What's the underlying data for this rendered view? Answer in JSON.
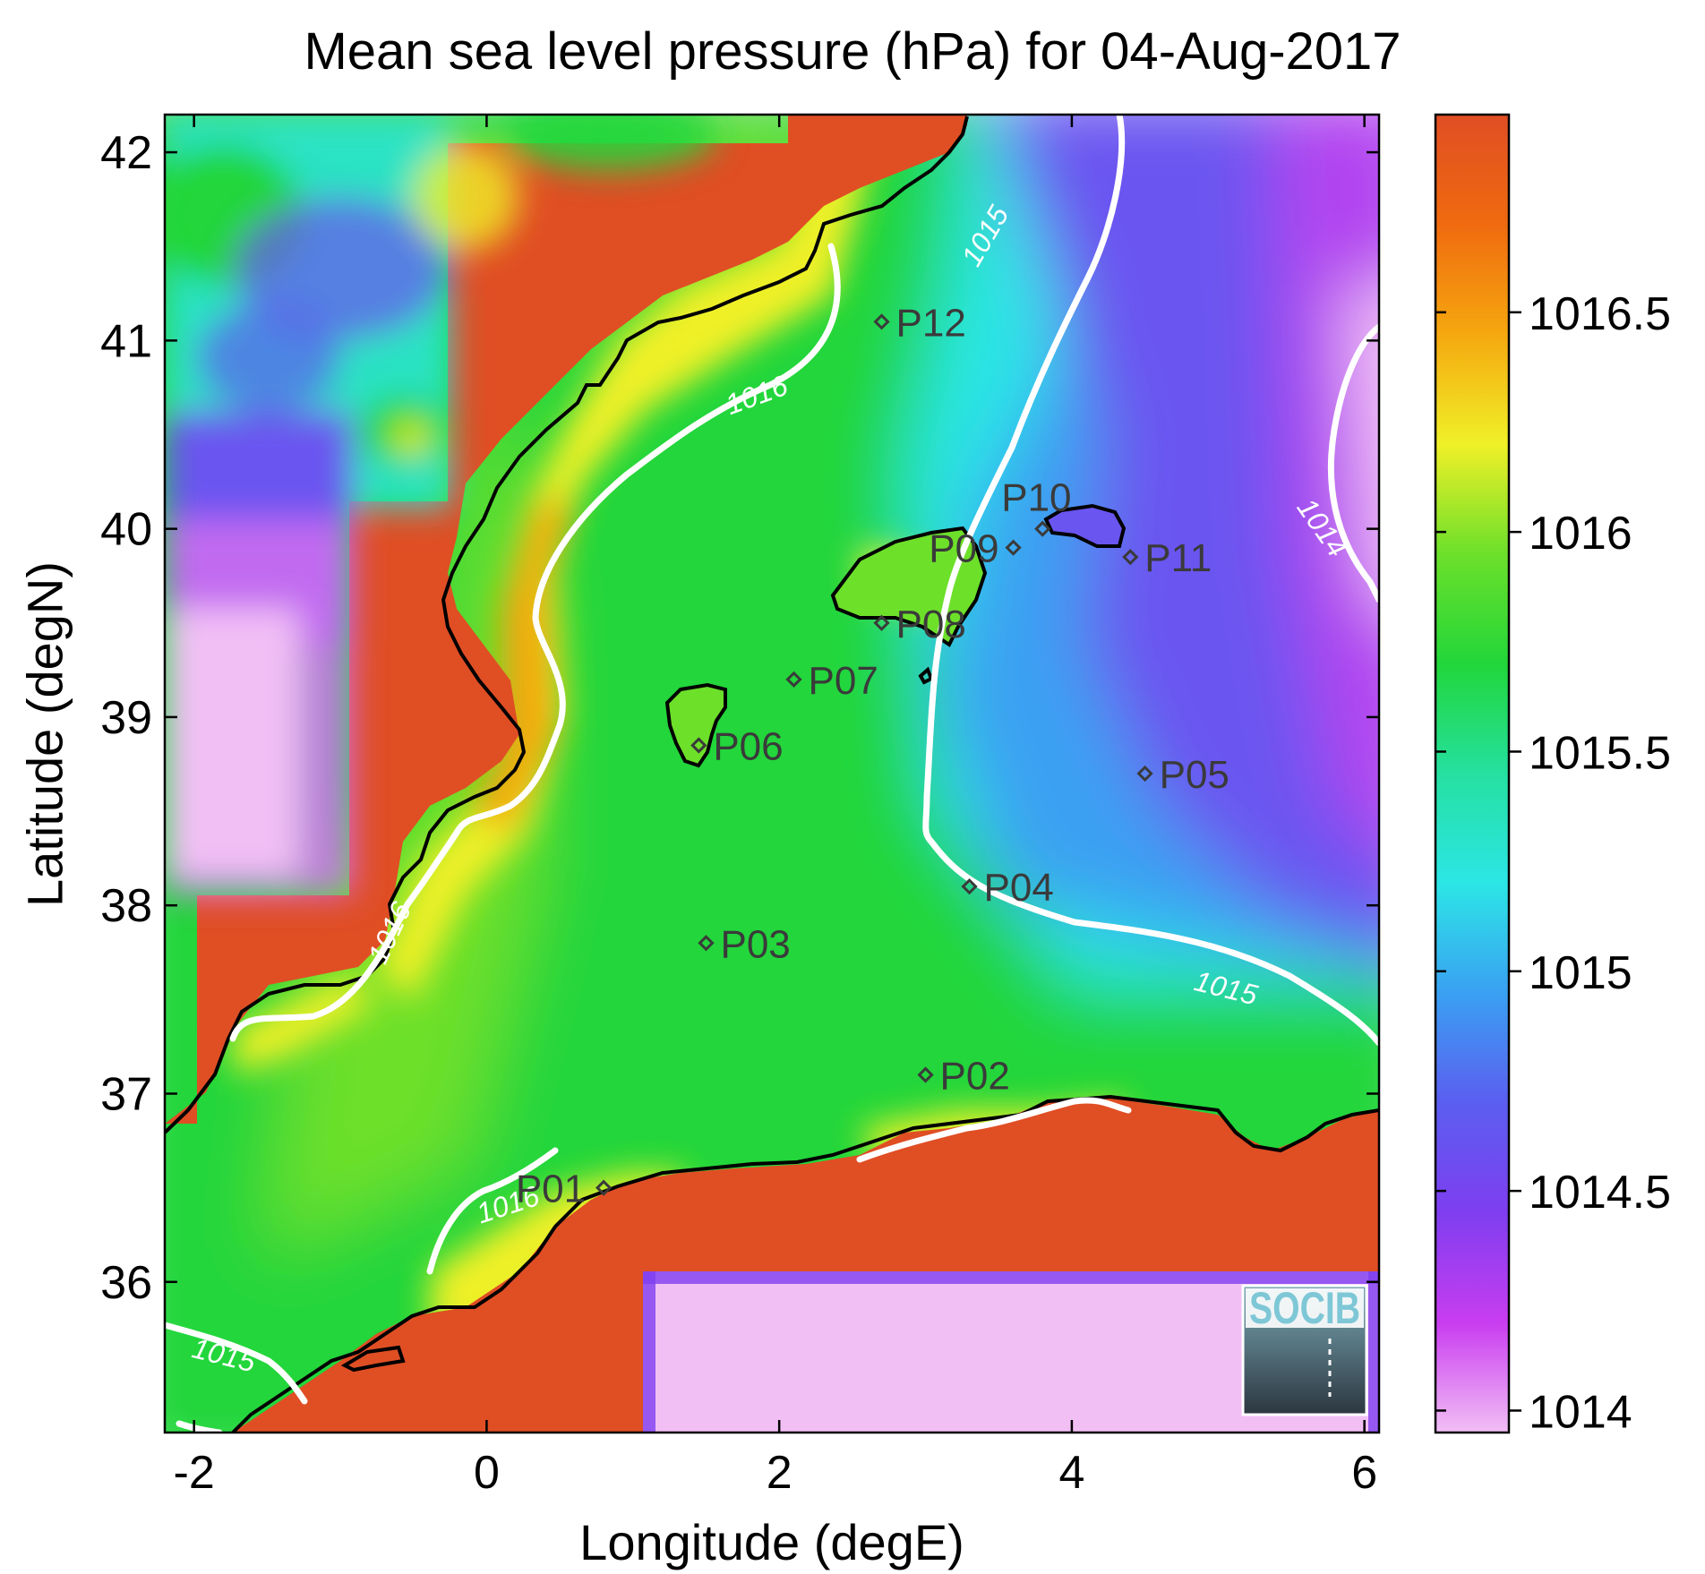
{
  "title": "Mean sea level pressure (hPa) for 04-Aug-2017",
  "x_axis": {
    "label": "Longitude (degE)",
    "range": [
      -2.2,
      6.1
    ],
    "ticks": [
      {
        "value": -2,
        "label": "-2"
      },
      {
        "value": 0,
        "label": "0"
      },
      {
        "value": 2,
        "label": "2"
      },
      {
        "value": 4,
        "label": "4"
      },
      {
        "value": 6,
        "label": "6"
      }
    ]
  },
  "y_axis": {
    "label": "Latitude (degN)",
    "range": [
      35.2,
      42.2
    ],
    "ticks": [
      {
        "value": 36,
        "label": "36"
      },
      {
        "value": 37,
        "label": "37"
      },
      {
        "value": 38,
        "label": "38"
      },
      {
        "value": 39,
        "label": "39"
      },
      {
        "value": 40,
        "label": "40"
      },
      {
        "value": 41,
        "label": "41"
      },
      {
        "value": 42,
        "label": "42"
      }
    ]
  },
  "colorbar": {
    "range": [
      1013.95,
      1016.95
    ],
    "ticks": [
      {
        "value": 1014,
        "label": "1014"
      },
      {
        "value": 1014.5,
        "label": "1014.5"
      },
      {
        "value": 1015,
        "label": "1015"
      },
      {
        "value": 1015.5,
        "label": "1015.5"
      },
      {
        "value": 1016,
        "label": "1016"
      },
      {
        "value": 1016.5,
        "label": "1016.5"
      }
    ],
    "colormap": [
      "#f2bff5",
      "#c93df0",
      "#7e3ef0",
      "#5b5ef0",
      "#3aa0f2",
      "#2ce6e6",
      "#25e0a0",
      "#22d63a",
      "#6de02a",
      "#f0f028",
      "#f5a80f",
      "#f06a0f",
      "#e04e24"
    ]
  },
  "land_color": "#e04e24",
  "contour_color": "#ffffff",
  "chart_data": {
    "type": "heatmap",
    "title": "Mean sea level pressure (hPa) for 04-Aug-2017",
    "xlabel": "Longitude (degE)",
    "ylabel": "Latitude (degN)",
    "xlim": [
      -2.2,
      6.1
    ],
    "ylim": [
      35.2,
      42.2
    ],
    "clim": [
      1013.95,
      1016.95
    ],
    "contour_levels": [
      1014,
      1015,
      1016
    ],
    "stations": [
      {
        "name": "P01",
        "lon": 0.8,
        "lat": 36.5
      },
      {
        "name": "P02",
        "lon": 3.0,
        "lat": 37.1
      },
      {
        "name": "P03",
        "lon": 1.5,
        "lat": 37.8
      },
      {
        "name": "P04",
        "lon": 3.3,
        "lat": 38.1
      },
      {
        "name": "P05",
        "lon": 4.5,
        "lat": 38.7
      },
      {
        "name": "P06",
        "lon": 1.45,
        "lat": 38.85
      },
      {
        "name": "P07",
        "lon": 2.1,
        "lat": 39.2
      },
      {
        "name": "P08",
        "lon": 2.7,
        "lat": 39.5
      },
      {
        "name": "P09",
        "lon": 3.6,
        "lat": 39.9
      },
      {
        "name": "P10",
        "lon": 3.8,
        "lat": 40.0
      },
      {
        "name": "P11",
        "lon": 4.4,
        "lat": 39.85
      },
      {
        "name": "P12",
        "lon": 2.7,
        "lat": 41.1
      }
    ],
    "contour_labels": [
      {
        "text": "1016",
        "lon": 1.85,
        "lat": 40.7,
        "rotate": -20
      },
      {
        "text": "1015",
        "lon": 3.42,
        "lat": 41.55,
        "rotate": -60
      },
      {
        "text": "1014",
        "lon": 5.7,
        "lat": 40.0,
        "rotate": 55
      },
      {
        "text": "1016",
        "lon": -0.65,
        "lat": 37.85,
        "rotate": -65
      },
      {
        "text": "1015",
        "lon": 5.05,
        "lat": 37.55,
        "rotate": 14
      },
      {
        "text": "1016",
        "lon": 0.15,
        "lat": 36.4,
        "rotate": -18
      },
      {
        "text": "1015",
        "lon": -1.8,
        "lat": 35.6,
        "rotate": 14
      }
    ]
  },
  "logo": {
    "text": "SOCIB"
  }
}
